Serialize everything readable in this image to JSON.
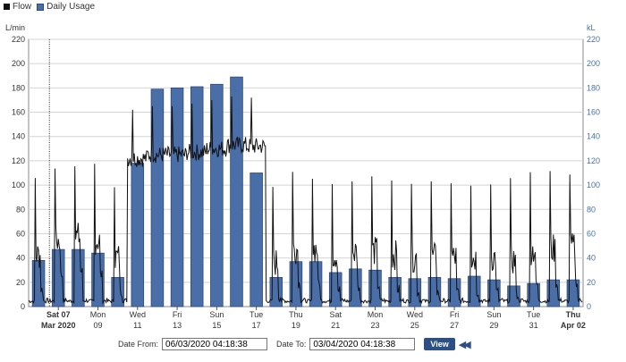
{
  "legend": {
    "flow_label": "Flow",
    "usage_label": "Daily Usage"
  },
  "controls": {
    "date_from_label": "Date From:",
    "date_from_value": "06/03/2020 04:18:38",
    "date_to_label": "Date To:",
    "date_to_value": "03/04/2020 04:18:38",
    "view_label": "View",
    "rewind_icon": "rewind-icon"
  },
  "colors": {
    "bar_fill": "#4a6fa8",
    "bar_stroke": "#2c4a7a",
    "flow": "#111111",
    "grid": "#d4d4d4",
    "right_axis": "#4a6fa8"
  },
  "chart_data": {
    "type": "bar",
    "left_axis": {
      "unit": "L/min",
      "range": [
        0,
        220
      ],
      "ticks": [
        0,
        20,
        40,
        60,
        80,
        100,
        120,
        140,
        160,
        180,
        200,
        220
      ]
    },
    "right_axis": {
      "unit": "kL",
      "range": [
        0,
        220
      ],
      "ticks": [
        0,
        20,
        40,
        60,
        80,
        100,
        120,
        140,
        160,
        180,
        200,
        220
      ]
    },
    "x_ticks": [
      {
        "l1": "Sat 07",
        "l2": "Mar 2020",
        "bold": true
      },
      {
        "l1": "Mon",
        "l2": "09"
      },
      {
        "l1": "Wed",
        "l2": "11"
      },
      {
        "l1": "Fri",
        "l2": "13"
      },
      {
        "l1": "Sun",
        "l2": "15"
      },
      {
        "l1": "Tue",
        "l2": "17"
      },
      {
        "l1": "Thu",
        "l2": "19"
      },
      {
        "l1": "Sat",
        "l2": "21"
      },
      {
        "l1": "Mon",
        "l2": "23"
      },
      {
        "l1": "Wed",
        "l2": "25"
      },
      {
        "l1": "Fri",
        "l2": "27"
      },
      {
        "l1": "Sun",
        "l2": "29"
      },
      {
        "l1": "Tue",
        "l2": "31"
      },
      {
        "l1": "Thu",
        "l2": "Apr 02",
        "bold": true
      }
    ],
    "series": [
      {
        "name": "Daily Usage",
        "days": [
          "Mar 06",
          "Mar 07",
          "Mar 08",
          "Mar 09",
          "Mar 10",
          "Mar 11",
          "Mar 12",
          "Mar 13",
          "Mar 14",
          "Mar 15",
          "Mar 16",
          "Mar 17",
          "Mar 18",
          "Mar 19",
          "Mar 20",
          "Mar 21",
          "Mar 22",
          "Mar 23",
          "Mar 24",
          "Mar 25",
          "Mar 26",
          "Mar 27",
          "Mar 28",
          "Mar 29",
          "Mar 30",
          "Mar 31",
          "Apr 01",
          "Apr 02"
        ],
        "values": [
          38,
          47,
          47,
          44,
          24,
          118,
          179,
          180,
          181,
          183,
          189,
          110,
          24,
          37,
          37,
          28,
          31,
          30,
          24,
          23,
          24,
          23,
          25,
          22,
          17,
          19,
          22,
          22
        ]
      },
      {
        "name": "Flow",
        "note_values": "daily baseline L/min",
        "values": [
          10,
          22,
          25,
          22,
          8,
          122,
          125,
          125,
          127,
          130,
          133,
          132,
          4,
          15,
          15,
          10,
          12,
          13,
          10,
          8,
          8,
          8,
          8,
          8,
          6,
          14,
          15,
          16
        ]
      }
    ],
    "grid": true,
    "legend_position": "top-left"
  }
}
